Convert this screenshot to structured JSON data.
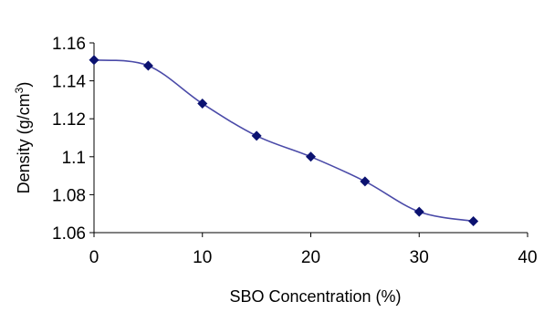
{
  "chart_data": {
    "type": "line",
    "title": "",
    "xlabel": "SBO Concentration (%)",
    "ylabel_main": "Density (g/cm",
    "ylabel_sup": "3",
    "ylabel_close": ")",
    "xlim": [
      0,
      40
    ],
    "ylim": [
      1.06,
      1.16
    ],
    "xticks": [
      0,
      10,
      20,
      30,
      40
    ],
    "yticks": [
      1.06,
      1.08,
      1.1,
      1.12,
      1.14,
      1.16
    ],
    "ytick_labels": [
      "1.06",
      "1.08",
      "1.1",
      "1.12",
      "1.14",
      "1.16"
    ],
    "xtick_labels": [
      "0",
      "10",
      "20",
      "30",
      "40"
    ],
    "grid": false,
    "legend": "none",
    "line_color": "#4a4aa8",
    "marker_color": "#0b1270",
    "series": [
      {
        "x": [
          0,
          5,
          10,
          15,
          20,
          25,
          30,
          35
        ],
        "y": [
          1.151,
          1.148,
          1.128,
          1.111,
          1.1,
          1.087,
          1.071,
          1.066
        ]
      }
    ]
  }
}
